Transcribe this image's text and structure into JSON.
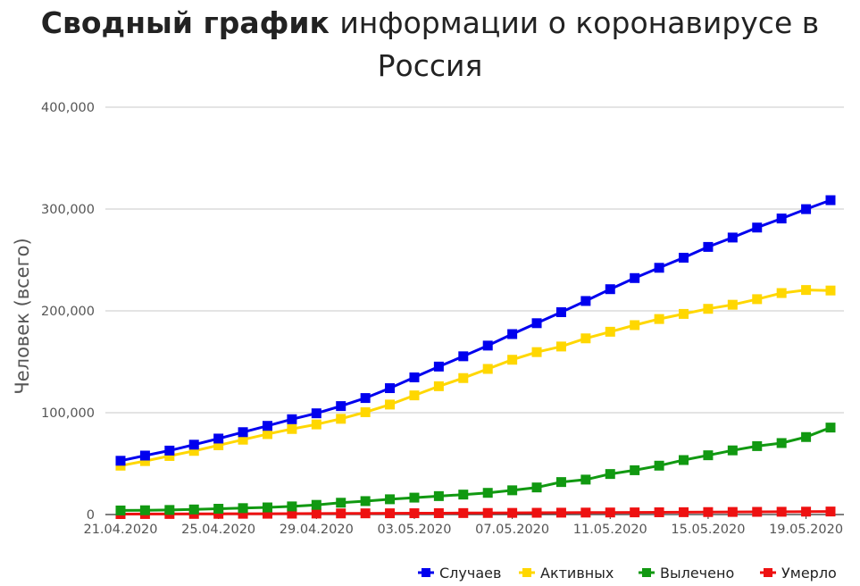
{
  "chart_data": {
    "type": "line",
    "title_bold": "Сводный график",
    "title_rest": "информации о коронавирусе в Россия",
    "ylabel": "Человек (всего)",
    "xlabel": "",
    "ylim": [
      0,
      400000
    ],
    "yticks": [
      "0",
      "100,000",
      "200,000",
      "300,000",
      "400,000"
    ],
    "xtick_labels": [
      "21.04.2020",
      "25.04.2020",
      "29.04.2020",
      "03.05.2020",
      "07.05.2020",
      "11.05.2020",
      "15.05.2020",
      "19.05.2020"
    ],
    "categories": [
      "21.04.2020",
      "22.04.2020",
      "23.04.2020",
      "24.04.2020",
      "25.04.2020",
      "26.04.2020",
      "27.04.2020",
      "28.04.2020",
      "29.04.2020",
      "30.04.2020",
      "01.05.2020",
      "02.05.2020",
      "03.05.2020",
      "04.05.2020",
      "05.05.2020",
      "06.05.2020",
      "07.05.2020",
      "08.05.2020",
      "09.05.2020",
      "10.05.2020",
      "11.05.2020",
      "12.05.2020",
      "13.05.2020",
      "14.05.2020",
      "15.05.2020",
      "16.05.2020",
      "17.05.2020",
      "18.05.2020",
      "19.05.2020",
      "20.05.2020"
    ],
    "legend_position": "bottom-right",
    "grid": true,
    "series": [
      {
        "name": "Случаев",
        "color": "#0000ee",
        "values": [
          52800,
          57900,
          62800,
          68600,
          74600,
          80900,
          87100,
          93600,
          99400,
          106500,
          114400,
          124100,
          134700,
          145300,
          155400,
          165900,
          177200,
          187900,
          198700,
          209700,
          221300,
          232200,
          242300,
          252200,
          262800,
          272000,
          281800,
          290700,
          299900,
          308700
        ]
      },
      {
        "name": "Активных",
        "color": "#ffd700",
        "values": [
          48000,
          52500,
          57500,
          62500,
          68000,
          73500,
          79000,
          84000,
          88500,
          94000,
          100500,
          108000,
          117000,
          126000,
          134000,
          143000,
          152000,
          159500,
          165000,
          173000,
          179500,
          186000,
          192000,
          197000,
          202000,
          206000,
          211500,
          217500,
          220500,
          220000
        ]
      },
      {
        "name": "Вылечено",
        "color": "#119911",
        "values": [
          4000,
          4200,
          4500,
          5000,
          5700,
          6300,
          7000,
          8000,
          9500,
          11600,
          13200,
          15000,
          16600,
          18100,
          19600,
          21300,
          23800,
          26600,
          31900,
          34300,
          39800,
          43500,
          48000,
          53500,
          58200,
          63000,
          67200,
          70200,
          76100,
          85400
        ]
      },
      {
        "name": "Умерло",
        "color": "#ee1111",
        "values": [
          456,
          513,
          555,
          615,
          681,
          747,
          794,
          867,
          972,
          1073,
          1169,
          1222,
          1280,
          1356,
          1451,
          1537,
          1625,
          1723,
          1827,
          1915,
          2009,
          2116,
          2212,
          2305,
          2418,
          2537,
          2631,
          2722,
          2837,
          2972
        ]
      }
    ]
  }
}
